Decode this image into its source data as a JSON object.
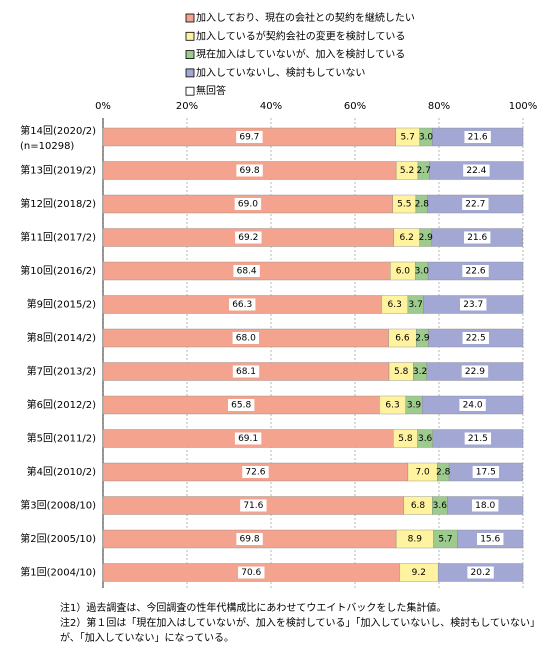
{
  "chart_data": {
    "type": "stacked-bar-horizontal",
    "categories": [
      "第14回(2020/2)",
      "第13回(2019/2)",
      "第12回(2018/2)",
      "第11回(2017/2)",
      "第10回(2016/2)",
      "第9回(2015/2)",
      "第8回(2014/2)",
      "第7回(2013/2)",
      "第6回(2012/2)",
      "第5回(2011/2)",
      "第4回(2010/2)",
      "第3回(2008/10)",
      "第2回(2005/10)",
      "第1回(2004/10)"
    ],
    "category_note": "(n=10298)",
    "xlim": [
      0,
      100
    ],
    "xticks": [
      {
        "value": 0,
        "label": "0%"
      },
      {
        "value": 20,
        "label": "20%"
      },
      {
        "value": 40,
        "label": "40%"
      },
      {
        "value": 60,
        "label": "60%"
      },
      {
        "value": 80,
        "label": "80%"
      },
      {
        "value": 100,
        "label": "100%"
      }
    ],
    "grid": true,
    "series": [
      {
        "name": "加入しており、現在の会社との契約を継続したい",
        "color": "#F4A38E",
        "values": [
          69.7,
          69.8,
          69.0,
          69.2,
          68.4,
          66.3,
          68.0,
          68.1,
          65.8,
          69.1,
          72.6,
          71.6,
          69.8,
          70.6
        ],
        "value_labels": [
          "69.7",
          "69.8",
          "69.0",
          "69.2",
          "68.4",
          "66.3",
          "68.0",
          "68.1",
          "65.8",
          "69.1",
          "72.6",
          "71.6",
          "69.8",
          "70.6"
        ]
      },
      {
        "name": "加入しているが契約会社の変更を検討している",
        "color": "#FFF3A0",
        "values": [
          5.7,
          5.2,
          5.5,
          6.2,
          6.0,
          6.3,
          6.6,
          5.8,
          6.3,
          5.8,
          7.0,
          6.8,
          8.9,
          9.2
        ],
        "value_labels": [
          "5.7",
          "5.2",
          "5.5",
          "6.2",
          "6.0",
          "6.3",
          "6.6",
          "5.8",
          "6.3",
          "5.8",
          "7.0",
          "6.8",
          "8.9",
          "9.2"
        ]
      },
      {
        "name": "現在加入はしていないが、加入を検討している",
        "color": "#9DCB8E",
        "values": [
          3.0,
          2.7,
          2.8,
          2.9,
          3.0,
          3.7,
          2.9,
          3.2,
          3.9,
          3.6,
          2.8,
          3.6,
          5.7,
          null
        ],
        "value_labels": [
          "3.0",
          "2.7",
          "2.8",
          "2.9",
          "3.0",
          "3.7",
          "2.9",
          "3.2",
          "3.9",
          "3.6",
          "2.8",
          "3.6",
          "5.7",
          null
        ]
      },
      {
        "name": "加入していないし、検討もしていない",
        "color": "#A2A8D3",
        "values": [
          21.6,
          22.4,
          22.7,
          21.6,
          22.6,
          23.7,
          22.5,
          22.9,
          24.0,
          21.5,
          17.5,
          18.0,
          15.6,
          20.2
        ],
        "value_labels": [
          "21.6",
          "22.4",
          "22.7",
          "21.6",
          "22.6",
          "23.7",
          "22.5",
          "22.9",
          "24.0",
          "21.5",
          "17.5",
          "18.0",
          "15.6",
          "20.2"
        ]
      },
      {
        "name": "無回答",
        "color": "#FFFFFF",
        "values": [
          0,
          0,
          0,
          0,
          0,
          0,
          0,
          0,
          0,
          0,
          0,
          0,
          0,
          0
        ]
      }
    ],
    "notes": [
      "注1）過去調査は、今回調査の性年代構成比にあわせてウエイトバックをした集計値。",
      "注2）第１回は「現在加入はしていないが、加入を検討している」「加入していないし、検討もしていない」が、「加入していない」になっている。"
    ]
  }
}
